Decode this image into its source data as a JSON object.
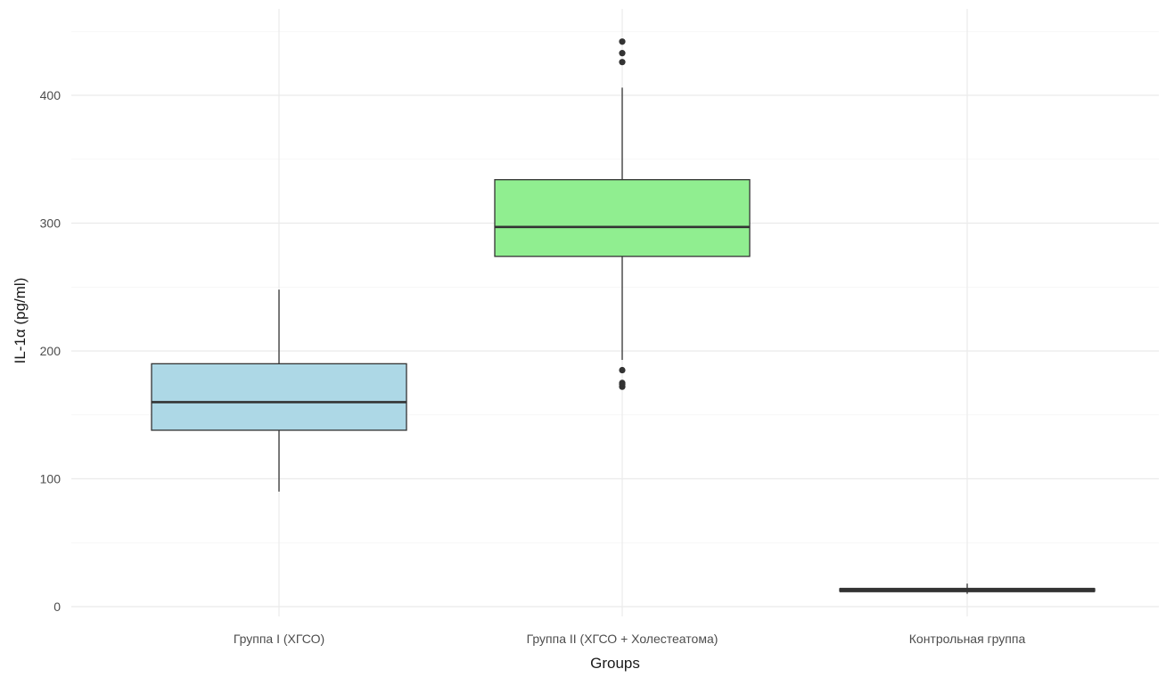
{
  "chart_data": {
    "type": "boxplot",
    "title": "",
    "xlabel": "Groups",
    "ylabel": "IL-1α (pg/ml)",
    "ylim": [
      -7,
      452
    ],
    "yticks": [
      0,
      100,
      200,
      300,
      400
    ],
    "grid": true,
    "legend": "none",
    "theme": "minimal",
    "categories": [
      "Группа I (ХГСО)",
      "Группа II (ХГСО + Холестеатома)",
      "Контрольная группа"
    ],
    "boxes": [
      {
        "category": "Группа I (ХГСО)",
        "whisker_low": 90,
        "q1": 138,
        "median": 160,
        "q3": 190,
        "whisker_high": 248,
        "outliers": [],
        "fill": "#add8e6"
      },
      {
        "category": "Группа II (ХГСО + Холестеатома)",
        "whisker_low": 193,
        "q1": 274,
        "median": 297,
        "q3": 334,
        "whisker_high": 406,
        "outliers": [
          172,
          174,
          175,
          185,
          426,
          433,
          442
        ],
        "fill": "#90ee90"
      },
      {
        "category": "Контрольная группа",
        "whisker_low": 10,
        "q1": 12,
        "median": 13,
        "q3": 14,
        "whisker_high": 18,
        "outliers": [],
        "fill": "#f08080"
      }
    ]
  }
}
